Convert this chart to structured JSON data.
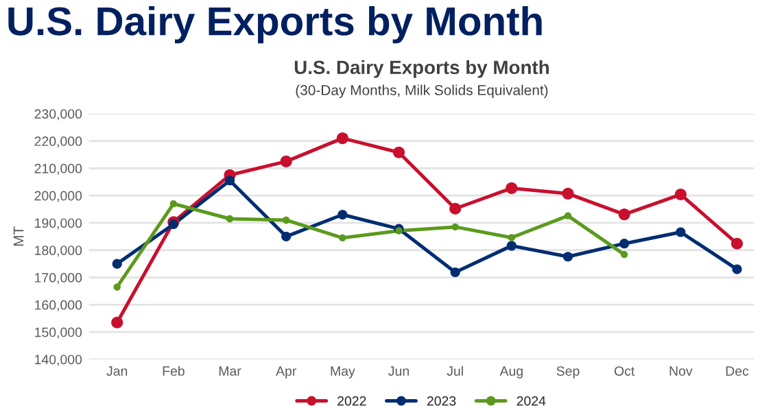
{
  "chart_data": {
    "type": "line",
    "title": "U.S. Dairy Exports by Month",
    "subtitle": "U.S. Dairy Exports by Month",
    "annotations": [
      "(30-Day Months, Milk Solids Equivalent)"
    ],
    "ylabel": "MT",
    "categories": [
      "Jan",
      "Feb",
      "Mar",
      "Apr",
      "May",
      "Jun",
      "Jul",
      "Aug",
      "Sep",
      "Oct",
      "Nov",
      "Dec"
    ],
    "series": [
      {
        "name": "2022",
        "color": "#c8102e",
        "values": [
          153500,
          190300,
          207500,
          212500,
          221000,
          215800,
          195200,
          202700,
          200700,
          193100,
          200400,
          182400
        ]
      },
      {
        "name": "2023",
        "color": "#002d72",
        "values": [
          175000,
          189500,
          205500,
          185000,
          193000,
          187800,
          171900,
          181600,
          177600,
          182400,
          186600,
          173000
        ]
      },
      {
        "name": "2024",
        "color": "#5b9a1e",
        "values": [
          166500,
          197000,
          191500,
          191000,
          184500,
          187100,
          188500,
          184600,
          192600,
          178400,
          null,
          null
        ]
      }
    ],
    "ylim": [
      140000,
      230000
    ],
    "yticks": [
      {
        "value": 140000,
        "label": "140,000"
      },
      {
        "value": 150000,
        "label": "150,000"
      },
      {
        "value": 160000,
        "label": "160,000"
      },
      {
        "value": 170000,
        "label": "170,000"
      },
      {
        "value": 180000,
        "label": "180,000"
      },
      {
        "value": 190000,
        "label": "190,000"
      },
      {
        "value": 200000,
        "label": "200,000"
      },
      {
        "value": 210000,
        "label": "210,000"
      },
      {
        "value": 220000,
        "label": "220,000"
      },
      {
        "value": 230000,
        "label": "230,000"
      }
    ],
    "grid": "y",
    "legend": "bottom",
    "marker": "circle",
    "line_style": "solid"
  }
}
